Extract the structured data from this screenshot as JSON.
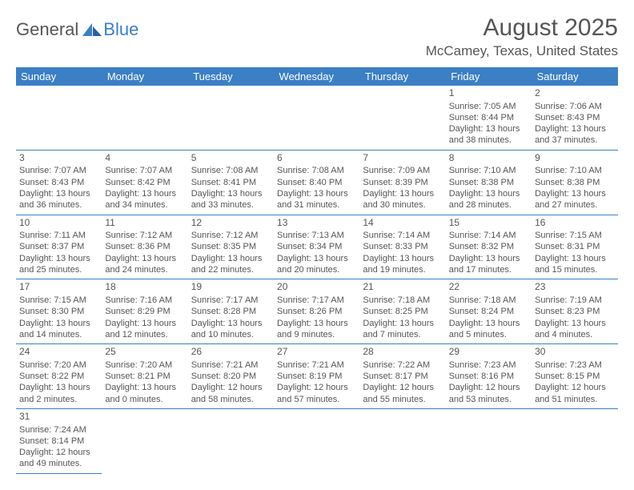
{
  "logo": {
    "text1": "General",
    "text2": "Blue"
  },
  "title": "August 2025",
  "location": "McCamey, Texas, United States",
  "colors": {
    "header_bg": "#3b7fc4",
    "header_text": "#ffffff",
    "body_text": "#555555",
    "border": "#3b7fc4",
    "background": "#ffffff"
  },
  "day_headers": [
    "Sunday",
    "Monday",
    "Tuesday",
    "Wednesday",
    "Thursday",
    "Friday",
    "Saturday"
  ],
  "weeks": [
    [
      null,
      null,
      null,
      null,
      null,
      {
        "d": "1",
        "sr": "7:05 AM",
        "ss": "8:44 PM",
        "dl": "13 hours and 38 minutes."
      },
      {
        "d": "2",
        "sr": "7:06 AM",
        "ss": "8:43 PM",
        "dl": "13 hours and 37 minutes."
      }
    ],
    [
      {
        "d": "3",
        "sr": "7:07 AM",
        "ss": "8:43 PM",
        "dl": "13 hours and 36 minutes."
      },
      {
        "d": "4",
        "sr": "7:07 AM",
        "ss": "8:42 PM",
        "dl": "13 hours and 34 minutes."
      },
      {
        "d": "5",
        "sr": "7:08 AM",
        "ss": "8:41 PM",
        "dl": "13 hours and 33 minutes."
      },
      {
        "d": "6",
        "sr": "7:08 AM",
        "ss": "8:40 PM",
        "dl": "13 hours and 31 minutes."
      },
      {
        "d": "7",
        "sr": "7:09 AM",
        "ss": "8:39 PM",
        "dl": "13 hours and 30 minutes."
      },
      {
        "d": "8",
        "sr": "7:10 AM",
        "ss": "8:38 PM",
        "dl": "13 hours and 28 minutes."
      },
      {
        "d": "9",
        "sr": "7:10 AM",
        "ss": "8:38 PM",
        "dl": "13 hours and 27 minutes."
      }
    ],
    [
      {
        "d": "10",
        "sr": "7:11 AM",
        "ss": "8:37 PM",
        "dl": "13 hours and 25 minutes."
      },
      {
        "d": "11",
        "sr": "7:12 AM",
        "ss": "8:36 PM",
        "dl": "13 hours and 24 minutes."
      },
      {
        "d": "12",
        "sr": "7:12 AM",
        "ss": "8:35 PM",
        "dl": "13 hours and 22 minutes."
      },
      {
        "d": "13",
        "sr": "7:13 AM",
        "ss": "8:34 PM",
        "dl": "13 hours and 20 minutes."
      },
      {
        "d": "14",
        "sr": "7:14 AM",
        "ss": "8:33 PM",
        "dl": "13 hours and 19 minutes."
      },
      {
        "d": "15",
        "sr": "7:14 AM",
        "ss": "8:32 PM",
        "dl": "13 hours and 17 minutes."
      },
      {
        "d": "16",
        "sr": "7:15 AM",
        "ss": "8:31 PM",
        "dl": "13 hours and 15 minutes."
      }
    ],
    [
      {
        "d": "17",
        "sr": "7:15 AM",
        "ss": "8:30 PM",
        "dl": "13 hours and 14 minutes."
      },
      {
        "d": "18",
        "sr": "7:16 AM",
        "ss": "8:29 PM",
        "dl": "13 hours and 12 minutes."
      },
      {
        "d": "19",
        "sr": "7:17 AM",
        "ss": "8:28 PM",
        "dl": "13 hours and 10 minutes."
      },
      {
        "d": "20",
        "sr": "7:17 AM",
        "ss": "8:26 PM",
        "dl": "13 hours and 9 minutes."
      },
      {
        "d": "21",
        "sr": "7:18 AM",
        "ss": "8:25 PM",
        "dl": "13 hours and 7 minutes."
      },
      {
        "d": "22",
        "sr": "7:18 AM",
        "ss": "8:24 PM",
        "dl": "13 hours and 5 minutes."
      },
      {
        "d": "23",
        "sr": "7:19 AM",
        "ss": "8:23 PM",
        "dl": "13 hours and 4 minutes."
      }
    ],
    [
      {
        "d": "24",
        "sr": "7:20 AM",
        "ss": "8:22 PM",
        "dl": "13 hours and 2 minutes."
      },
      {
        "d": "25",
        "sr": "7:20 AM",
        "ss": "8:21 PM",
        "dl": "13 hours and 0 minutes."
      },
      {
        "d": "26",
        "sr": "7:21 AM",
        "ss": "8:20 PM",
        "dl": "12 hours and 58 minutes."
      },
      {
        "d": "27",
        "sr": "7:21 AM",
        "ss": "8:19 PM",
        "dl": "12 hours and 57 minutes."
      },
      {
        "d": "28",
        "sr": "7:22 AM",
        "ss": "8:17 PM",
        "dl": "12 hours and 55 minutes."
      },
      {
        "d": "29",
        "sr": "7:23 AM",
        "ss": "8:16 PM",
        "dl": "12 hours and 53 minutes."
      },
      {
        "d": "30",
        "sr": "7:23 AM",
        "ss": "8:15 PM",
        "dl": "12 hours and 51 minutes."
      }
    ],
    [
      {
        "d": "31",
        "sr": "7:24 AM",
        "ss": "8:14 PM",
        "dl": "12 hours and 49 minutes."
      },
      null,
      null,
      null,
      null,
      null,
      null
    ]
  ],
  "labels": {
    "sunrise": "Sunrise: ",
    "sunset": "Sunset: ",
    "daylight": "Daylight: "
  }
}
